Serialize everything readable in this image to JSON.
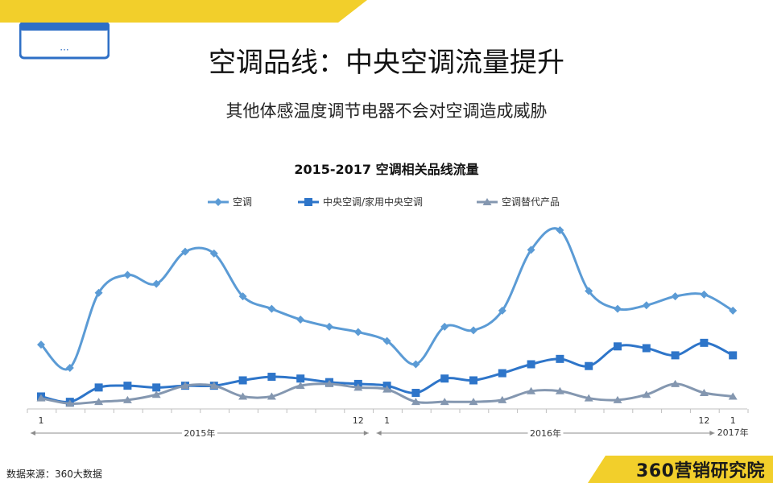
{
  "page": {
    "title": "空调品线：中央空调流量提升",
    "subtitle": "其他体感温度调节电器不会对空调造成威胁",
    "source": "数据来源：360大数据",
    "brand_digits": "360",
    "brand_text": "营销研究院",
    "icon_dots": "···"
  },
  "colors": {
    "accent_yellow": "#f2cf2b",
    "icon_blue": "#2e6fc6"
  },
  "chart_data": {
    "type": "line",
    "title": "2015-2017 空调相关品线流量",
    "x_labels": [
      "1",
      "",
      "",
      "",
      "",
      "",
      "",
      "",
      "",
      "",
      "",
      "12",
      "1",
      "",
      "",
      "",
      "",
      "",
      "",
      "",
      "",
      "",
      "",
      "12",
      "1"
    ],
    "year_groups": [
      {
        "label": "2015年",
        "start": 0,
        "end": 11
      },
      {
        "label": "2016年",
        "start": 12,
        "end": 23
      },
      {
        "label": "2017年",
        "start": 24,
        "end": 24
      }
    ],
    "ylim": [
      0,
      100
    ],
    "grid": false,
    "legend_position": "top",
    "series": [
      {
        "name": "空调",
        "color": "#5b9bd5",
        "marker": "diamond",
        "values": [
          36,
          23,
          65,
          75,
          70,
          88,
          87,
          63,
          56,
          50,
          46,
          43,
          38,
          25,
          46,
          44,
          55,
          89,
          100,
          66,
          56,
          58,
          63,
          64,
          55
        ]
      },
      {
        "name": "中央空调/家用中央空调",
        "color": "#2e75c9",
        "marker": "square",
        "values": [
          7,
          4,
          12,
          13,
          12,
          13,
          13,
          16,
          18,
          17,
          15,
          14,
          13,
          9,
          17,
          16,
          20,
          25,
          28,
          24,
          35,
          34,
          30,
          37,
          30
        ]
      },
      {
        "name": "空调替代产品",
        "color": "#8497b0",
        "marker": "triangle",
        "values": [
          6,
          3,
          4,
          5,
          8,
          13,
          13,
          7,
          7,
          13,
          14,
          12,
          11,
          4,
          4,
          4,
          5,
          10,
          10,
          6,
          5,
          8,
          14,
          9,
          7
        ]
      }
    ]
  }
}
